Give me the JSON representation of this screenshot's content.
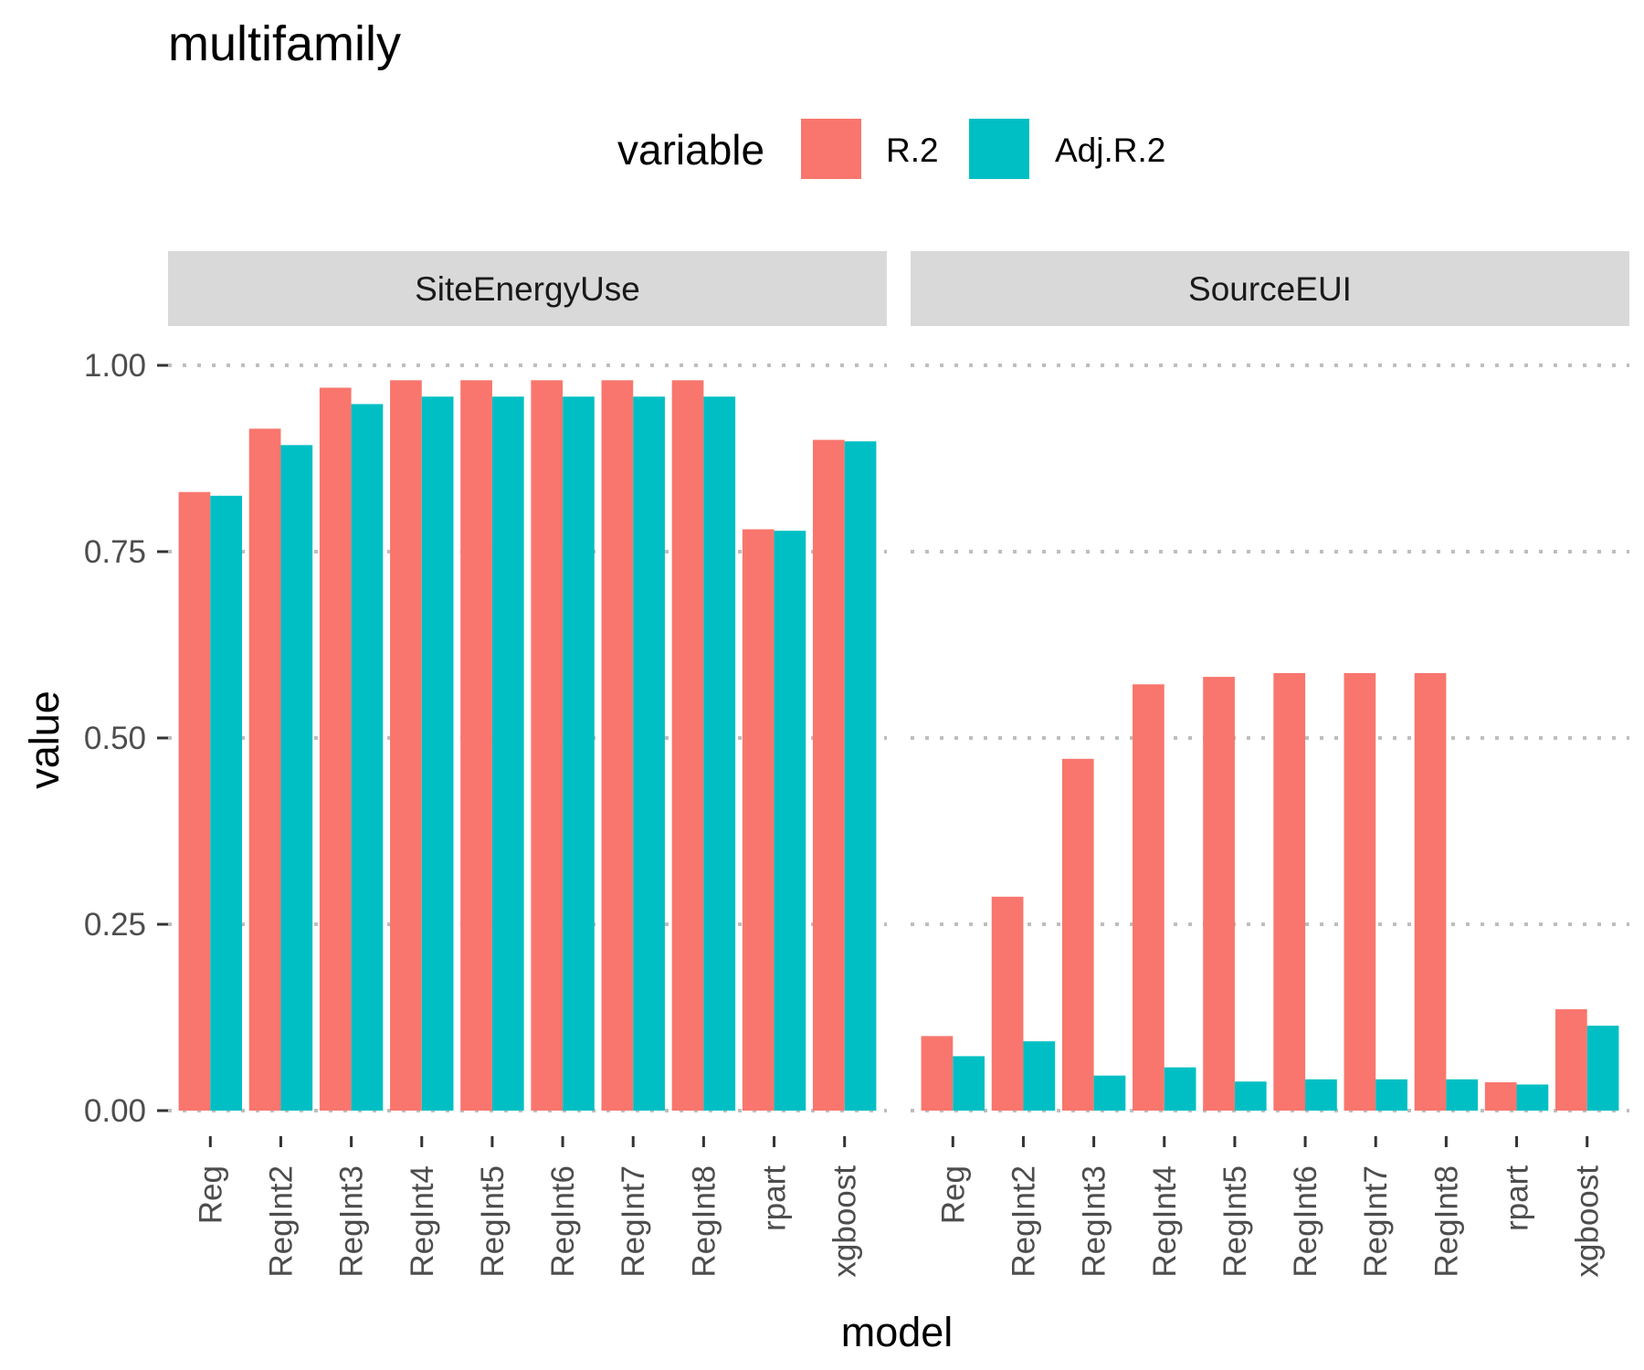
{
  "chart_data": {
    "type": "bar",
    "title": "multifamily",
    "xlabel": "model",
    "ylabel": "value",
    "ylim": [
      0,
      1
    ],
    "yticks": [
      "0.00",
      "0.25",
      "0.50",
      "0.75",
      "1.00"
    ],
    "ytick_values": [
      0,
      0.25,
      0.5,
      0.75,
      1.0
    ],
    "grid": "dotted horizontal major lines",
    "legend": {
      "title": "variable",
      "position": "top",
      "entries": [
        "R.2",
        "Adj.R.2"
      ]
    },
    "colors": {
      "R.2": "#F8766D",
      "Adj.R.2": "#00BFC4",
      "strip_background": "#D9D9D9",
      "grid": "#BEBEBE"
    },
    "categories": [
      "Reg",
      "RegInt2",
      "RegInt3",
      "RegInt4",
      "RegInt5",
      "RegInt6",
      "RegInt7",
      "RegInt8",
      "rpart",
      "xgboost"
    ],
    "panels": [
      {
        "label": "SiteEnergyUse",
        "series": [
          {
            "name": "R.2",
            "values": [
              0.83,
              0.915,
              0.97,
              0.98,
              0.98,
              0.98,
              0.98,
              0.98,
              0.78,
              0.9
            ]
          },
          {
            "name": "Adj.R.2",
            "values": [
              0.825,
              0.893,
              0.948,
              0.958,
              0.958,
              0.958,
              0.958,
              0.958,
              0.778,
              0.898
            ]
          }
        ]
      },
      {
        "label": "SourceEUI",
        "series": [
          {
            "name": "R.2",
            "values": [
              0.1,
              0.287,
              0.472,
              0.572,
              0.582,
              0.587,
              0.587,
              0.587,
              0.038,
              0.136
            ]
          },
          {
            "name": "Adj.R.2",
            "values": [
              0.073,
              0.093,
              0.047,
              0.058,
              0.039,
              0.042,
              0.042,
              0.042,
              0.035,
              0.114
            ]
          }
        ]
      }
    ]
  }
}
